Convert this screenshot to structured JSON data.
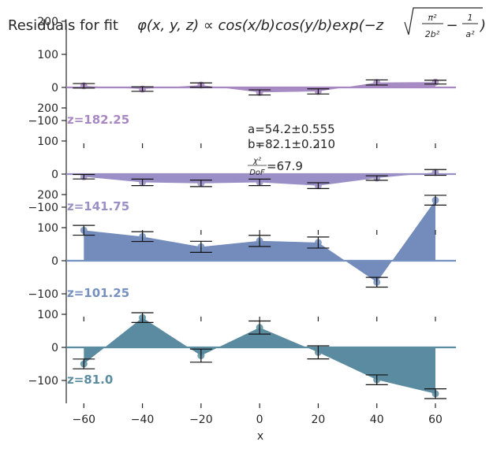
{
  "chart_data": {
    "type": "scatter",
    "title": "Residuals for fit",
    "formula": {
      "lhs": "φ(x, y, z) ∝ cos(x/b)cos(y/b)exp(−z",
      "num1": "π²",
      "den1": "2b²",
      "minus": "−",
      "num2": "1",
      "den2": "a²",
      "close": ")"
    },
    "xlabel": "x",
    "xlim": [
      -66,
      67
    ],
    "xticks": [
      -60,
      -40,
      -20,
      0,
      20,
      40,
      60
    ],
    "ylim": [
      -170,
      210
    ],
    "yticks_primary": [
      -100,
      0,
      100,
      200
    ],
    "yticks_bottom": [
      -100,
      0,
      100
    ],
    "fit_info": {
      "a": "a=54.2±0.555",
      "b": "b=82.1±0.210",
      "chi_num": "χ²",
      "chi_den": "DoF",
      "chi_val": "=67.9"
    },
    "series": [
      {
        "name": "z=182.25",
        "color": "#a888c2",
        "fill": "#a78bc3",
        "x": [
          -60,
          -40,
          -20,
          0,
          20,
          40,
          60
        ],
        "y": [
          5,
          -5,
          7,
          -15,
          -12,
          15,
          16
        ],
        "err": [
          2,
          2,
          2,
          3,
          3,
          3,
          1
        ]
      },
      {
        "name": "z=141.75",
        "color": "#9b90c6",
        "fill": "#9a90c7",
        "x": [
          -60,
          -40,
          -20,
          0,
          20,
          40,
          60
        ],
        "y": [
          -8,
          -25,
          -28,
          -25,
          -35,
          -12,
          5
        ],
        "err": [
          2,
          5,
          5,
          5,
          4,
          2,
          4
        ]
      },
      {
        "name": "z=101.25",
        "color": "#7691bf",
        "fill": "#738cbc",
        "x": [
          -60,
          -40,
          -20,
          0,
          20,
          40,
          60
        ],
        "y": [
          92,
          73,
          42,
          60,
          55,
          -65,
          183
        ],
        "err": [
          10,
          10,
          12,
          12,
          12,
          10,
          10
        ]
      },
      {
        "name": "z=81.0",
        "color": "#5b8da1",
        "fill": "#5a8ba0",
        "x": [
          -60,
          -40,
          -20,
          0,
          20,
          40,
          60
        ],
        "y": [
          -50,
          90,
          -25,
          60,
          -15,
          -98,
          -140
        ],
        "err": [
          10,
          10,
          15,
          15,
          15,
          10,
          10
        ]
      }
    ]
  }
}
